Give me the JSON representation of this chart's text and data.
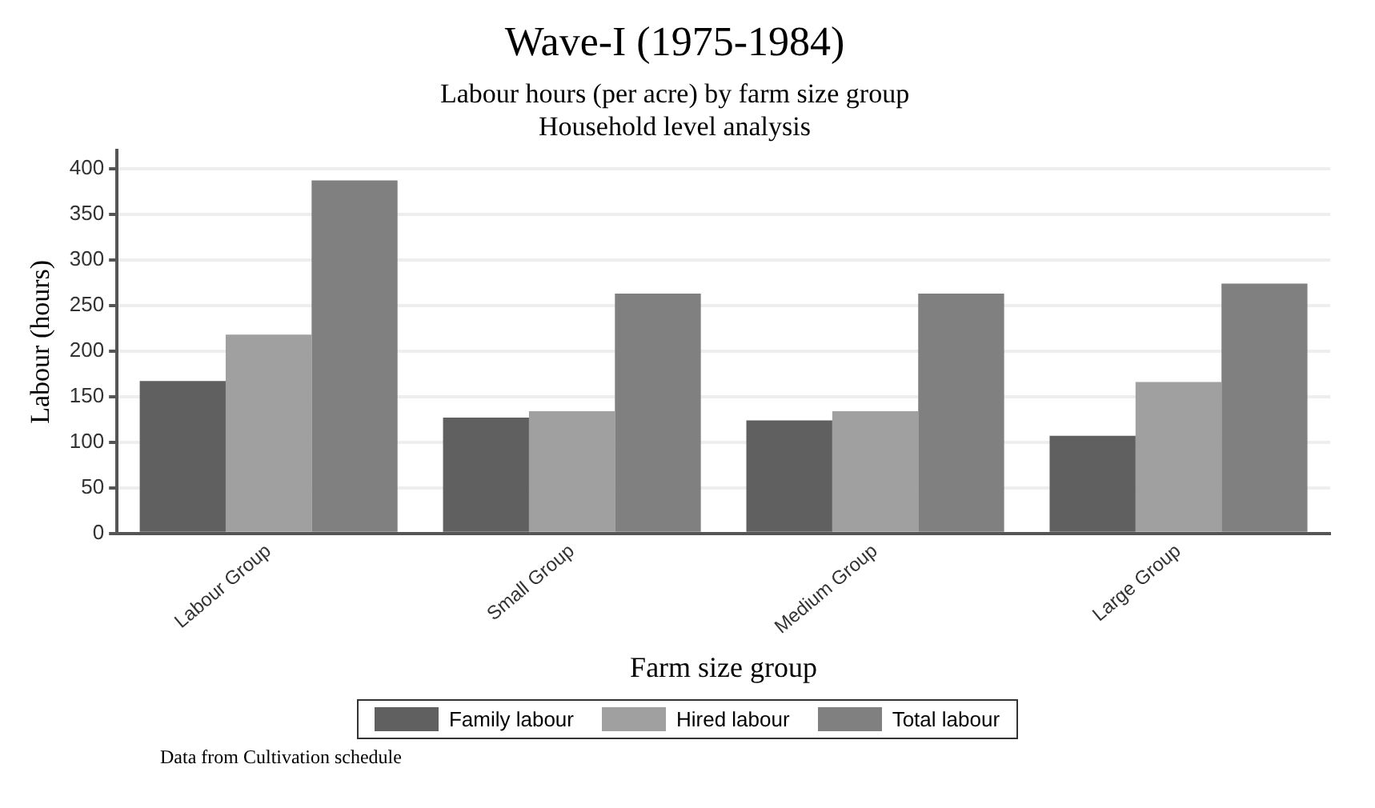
{
  "chart_data": {
    "type": "bar",
    "title": "Wave-I (1975-1984)",
    "subtitle": "Labour hours (per acre) by farm size group\nHousehold level analysis",
    "xlabel": "Farm size group",
    "ylabel": "Labour (hours)",
    "categories": [
      "Labour Group",
      "Small Group",
      "Medium Group",
      "Large Group"
    ],
    "series": [
      {
        "name": "Family labour",
        "color": "#606060",
        "values": [
          167,
          127,
          124,
          107
        ]
      },
      {
        "name": "Hired labour",
        "color": "#a0a0a0",
        "values": [
          218,
          134,
          134,
          166
        ]
      },
      {
        "name": "Total labour",
        "color": "#808080",
        "values": [
          387,
          263,
          263,
          274
        ]
      }
    ],
    "ylim": [
      0,
      420
    ],
    "yticks": [
      0,
      50,
      100,
      150,
      200,
      250,
      300,
      350,
      400
    ],
    "grid": "y",
    "legend": "bottom",
    "annotations": [
      "Data from Cultivation schedule"
    ]
  }
}
